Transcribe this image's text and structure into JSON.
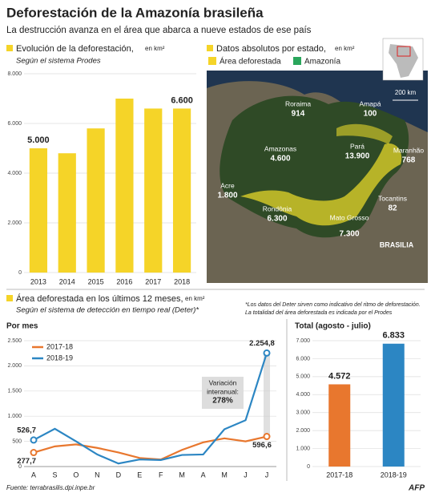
{
  "header": {
    "title": "Deforestación de la Amazonía brasileña",
    "subtitle": "La destrucción avanza en el área que abarca a nueve estados de ese país"
  },
  "map": {
    "title": "Datos absolutos por estado,",
    "unit": "en km²",
    "legend": [
      "Área deforestada",
      "Amazonía"
    ],
    "scale": "200 km",
    "capital": "BRASILIA",
    "states": [
      {
        "name": "Roraima",
        "value": "914"
      },
      {
        "name": "Amapá",
        "value": "100"
      },
      {
        "name": "Amazonas",
        "value": "4.600"
      },
      {
        "name": "Pará",
        "value": "13.900"
      },
      {
        "name": "Maranhão",
        "value": "768"
      },
      {
        "name": "Acre",
        "value": "1.800"
      },
      {
        "name": "Rondônia",
        "value": "6.300"
      },
      {
        "name": "Tocantins",
        "value": "82"
      },
      {
        "name": "Mato Grosso",
        "value": "7.300"
      }
    ]
  },
  "section2": {
    "title": "Área deforestada en los últimos 12 meses,",
    "unit": "en km²",
    "subtitle": "Según el sistema de detección en tiempo real (Deter)*",
    "note": [
      "*Los datos del Deter sirven como indicativo del ritmo de deforestación.",
      "La totalidad del área deforestada es indicada por el Prodes"
    ]
  },
  "footer": {
    "source": "Fuente: terrabrasilis.dpi.inpe.br",
    "logo": "AFP"
  },
  "chart_data": [
    {
      "type": "bar",
      "title": "Evolución de la deforestación,",
      "unit": "en km²",
      "subtitle": "Según el sistema Prodes",
      "categories": [
        "2013",
        "2014",
        "2015",
        "2016",
        "2017",
        "2018"
      ],
      "values": [
        5000,
        4800,
        5800,
        7000,
        6600,
        6600
      ],
      "value_labels": [
        "5.000",
        null,
        null,
        null,
        null,
        "6.600"
      ],
      "color": "#f5d428",
      "ylim": [
        0,
        8000
      ],
      "yticks": [
        0,
        {
          "value": 2000,
          "label": "2.000"
        },
        {
          "value": 4000,
          "label": "4.000"
        },
        {
          "value": 6000,
          "label": "6.000"
        },
        {
          "value": 8000,
          "label": "8.000"
        }
      ],
      "grid": true
    },
    {
      "type": "line",
      "title": "Por mes",
      "categories": [
        "A",
        "S",
        "O",
        "N",
        "D",
        "E",
        "F",
        "M",
        "A",
        "M",
        "J",
        "J"
      ],
      "series": [
        {
          "name": "2017-18",
          "color": "#e8772e",
          "values": [
            277.7,
            400,
            440,
            370,
            280,
            170,
            140,
            330,
            480,
            560,
            500,
            596.6
          ],
          "value_labels": [
            "277,7",
            null,
            null,
            null,
            null,
            null,
            null,
            null,
            null,
            null,
            null,
            "596,6"
          ]
        },
        {
          "name": "2018-19",
          "color": "#2c86c3",
          "values": [
            526.7,
            750,
            500,
            240,
            60,
            140,
            130,
            230,
            240,
            740,
            920,
            2254.8
          ],
          "value_labels": [
            "526,7",
            null,
            null,
            null,
            null,
            null,
            null,
            null,
            null,
            null,
            null,
            "2.254,8"
          ]
        }
      ],
      "annotation": [
        "Variación",
        "interanual:",
        "278%"
      ],
      "ylim": [
        0,
        2500
      ],
      "yticks": [
        0,
        500,
        {
          "value": 1000,
          "label": "1.000"
        },
        {
          "value": 1500,
          "label": "1.500"
        },
        {
          "value": 2000,
          "label": "2.000"
        },
        {
          "value": 2500,
          "label": "2.500"
        }
      ],
      "grid": true
    },
    {
      "type": "bar",
      "title": "Total (agosto - julio)",
      "categories": [
        "2017-18",
        "2018-19"
      ],
      "values": [
        4572,
        6833
      ],
      "value_labels": [
        "4.572",
        "6.833"
      ],
      "colors": [
        "#e8772e",
        "#2c86c3"
      ],
      "ylim": [
        0,
        7000
      ],
      "yticks": [
        0,
        {
          "value": 1000,
          "label": "1.000"
        },
        {
          "value": 2000,
          "label": "2.000"
        },
        {
          "value": 3000,
          "label": "3.000"
        },
        {
          "value": 4000,
          "label": "4.000"
        },
        {
          "value": 5000,
          "label": "5.000"
        },
        {
          "value": 6000,
          "label": "6.000"
        },
        {
          "value": 7000,
          "label": "7.000"
        }
      ],
      "grid": true
    }
  ]
}
